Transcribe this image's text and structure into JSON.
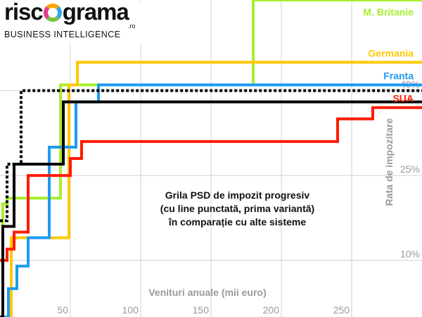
{
  "logo": {
    "brand_left": "risc",
    "brand_right": "grama",
    "domain_suffix": ".ro",
    "tagline": "BUSINESS INTELLIGENCE"
  },
  "annotation": [
    "Grila PSD de impozit progresiv",
    "(cu line punctată, prima variantă)",
    "în comparație cu alte sisteme"
  ],
  "chart_data": {
    "type": "line",
    "step": true,
    "title": "",
    "xlabel": "Venituri anuale (mii euro)",
    "ylabel": "Rata de impozitare",
    "xlim": [
      0,
      300
    ],
    "ylim": [
      0,
      0.56
    ],
    "x_ticks": [
      50,
      100,
      150,
      200,
      250
    ],
    "x_tick_labels": [
      "50",
      "100",
      "150",
      "200",
      "250"
    ],
    "y_ticks": [
      0.1,
      0.25,
      0.4
    ],
    "y_tick_labels": [
      "10%",
      "25%",
      "40%"
    ],
    "y_axis_position": "right",
    "grid": true,
    "legend": "inline labels at right",
    "series": [
      {
        "name": "M. Britanie",
        "color": "#a8ef2a",
        "style": "solid",
        "x": [
          0,
          2,
          2,
          5,
          5,
          43,
          43,
          180,
          180,
          300
        ],
        "y": [
          0.1,
          0.1,
          0.2,
          0.2,
          0.21,
          0.21,
          0.41,
          0.41,
          0.56,
          0.56
        ]
      },
      {
        "name": "Germania",
        "color": "#ffc800",
        "style": "solid",
        "x": [
          0,
          8,
          8,
          49,
          49,
          55,
          55,
          300
        ],
        "y": [
          0.0,
          0.0,
          0.14,
          0.14,
          0.41,
          0.41,
          0.45,
          0.45
        ]
      },
      {
        "name": "Franta",
        "color": "#1d9bf0",
        "style": "solid",
        "x": [
          0,
          6,
          6,
          12,
          12,
          20,
          20,
          35,
          35,
          54,
          54,
          70,
          70,
          300
        ],
        "y": [
          0.0,
          0.0,
          0.05,
          0.05,
          0.09,
          0.09,
          0.14,
          0.14,
          0.3,
          0.3,
          0.38,
          0.38,
          0.41,
          0.41
        ]
      },
      {
        "name": "SUA",
        "color": "#ff1a00",
        "style": "solid",
        "x": [
          0,
          5,
          5,
          10,
          10,
          20,
          20,
          50,
          50,
          58,
          58,
          240,
          240,
          265,
          265,
          300
        ],
        "y": [
          0.1,
          0.1,
          0.12,
          0.12,
          0.15,
          0.15,
          0.25,
          0.25,
          0.28,
          0.28,
          0.31,
          0.31,
          0.35,
          0.35,
          0.37,
          0.37
        ]
      },
      {
        "name": "",
        "color": "#000000",
        "style": "solid",
        "x": [
          0,
          2,
          2,
          10,
          10,
          45,
          45,
          300
        ],
        "y": [
          0.0,
          0.0,
          0.16,
          0.16,
          0.27,
          0.27,
          0.38,
          0.38
        ]
      },
      {
        "name": "",
        "color": "#000000",
        "style": "dotted",
        "x": [
          0,
          5,
          5,
          15,
          15,
          300
        ],
        "y": [
          0.17,
          0.17,
          0.27,
          0.27,
          0.4,
          0.4
        ]
      }
    ]
  }
}
